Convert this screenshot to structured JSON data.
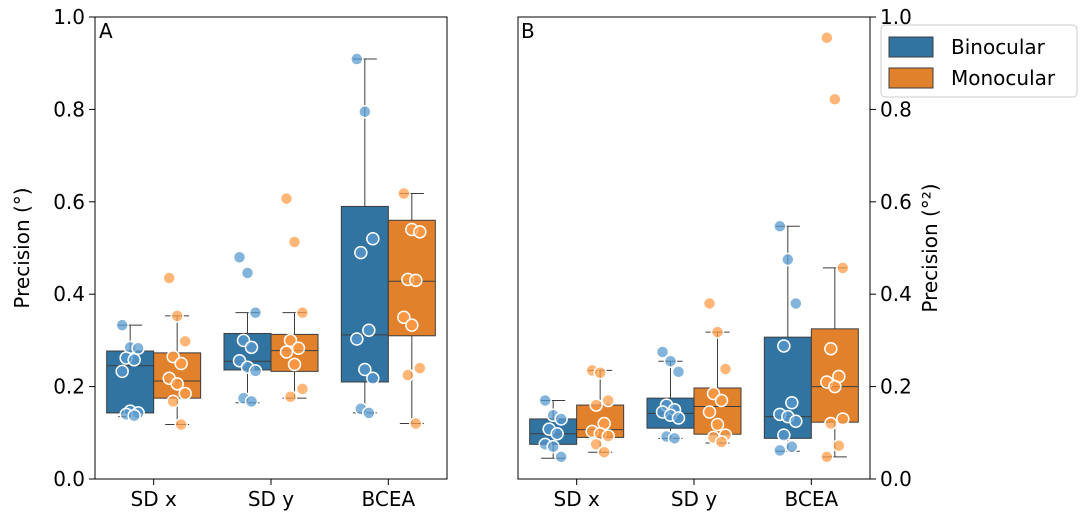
{
  "chart_data": [
    {
      "type": "box",
      "panel_label": "A",
      "ylabel": "Precision (°)",
      "ylim": [
        0,
        1.0
      ],
      "yticks": [
        "0.0",
        "0.2",
        "0.4",
        "0.6",
        "0.8",
        "1.0"
      ],
      "categories": [
        "SD x",
        "SD y",
        "BCEA"
      ],
      "series": [
        {
          "name": "Binocular",
          "boxes": [
            {
              "whisker_low": 0.135,
              "q1": 0.143,
              "median": 0.245,
              "q3": 0.277,
              "whisker_high": 0.333
            },
            {
              "whisker_low": 0.165,
              "q1": 0.236,
              "median": 0.255,
              "q3": 0.315,
              "whisker_high": 0.36
            },
            {
              "whisker_low": 0.143,
              "q1": 0.21,
              "median": 0.312,
              "q3": 0.59,
              "whisker_high": 0.909
            }
          ],
          "points": [
            [
              0.333,
              0.285,
              0.283,
              0.262,
              0.258,
              0.233,
              0.147,
              0.143,
              0.14,
              0.137
            ],
            [
              0.48,
              0.446,
              0.36,
              0.3,
              0.285,
              0.256,
              0.242,
              0.234,
              0.175,
              0.168
            ],
            [
              0.909,
              0.795,
              0.52,
              0.49,
              0.322,
              0.303,
              0.237,
              0.218,
              0.152,
              0.143
            ]
          ]
        },
        {
          "name": "Monocular",
          "boxes": [
            {
              "whisker_low": 0.118,
              "q1": 0.175,
              "median": 0.212,
              "q3": 0.273,
              "whisker_high": 0.353
            },
            {
              "whisker_low": 0.175,
              "q1": 0.233,
              "median": 0.278,
              "q3": 0.313,
              "whisker_high": 0.36
            },
            {
              "whisker_low": 0.12,
              "q1": 0.31,
              "median": 0.428,
              "q3": 0.56,
              "whisker_high": 0.618
            }
          ],
          "points": [
            [
              0.435,
              0.353,
              0.298,
              0.265,
              0.25,
              0.218,
              0.206,
              0.185,
              0.168,
              0.118
            ],
            [
              0.607,
              0.513,
              0.36,
              0.3,
              0.283,
              0.275,
              0.248,
              0.195,
              0.178
            ],
            [
              0.618,
              0.54,
              0.535,
              0.432,
              0.43,
              0.35,
              0.333,
              0.24,
              0.225,
              0.12
            ]
          ]
        }
      ]
    },
    {
      "type": "box",
      "panel_label": "B",
      "ylabel": "Precision (°²)",
      "ylim": [
        0,
        1.0
      ],
      "yticks": [
        "0.0",
        "0.2",
        "0.4",
        "0.6",
        "0.8",
        "1.0"
      ],
      "categories": [
        "SD x",
        "SD y",
        "BCEA"
      ],
      "series": [
        {
          "name": "Binocular",
          "boxes": [
            {
              "whisker_low": 0.045,
              "q1": 0.075,
              "median": 0.098,
              "q3": 0.13,
              "whisker_high": 0.17
            },
            {
              "whisker_low": 0.088,
              "q1": 0.11,
              "median": 0.142,
              "q3": 0.175,
              "whisker_high": 0.255
            },
            {
              "whisker_low": 0.06,
              "q1": 0.088,
              "median": 0.135,
              "q3": 0.307,
              "whisker_high": 0.547
            }
          ],
          "points": [
            [
              0.17,
              0.138,
              0.13,
              0.108,
              0.098,
              0.075,
              0.07,
              0.048
            ],
            [
              0.275,
              0.255,
              0.232,
              0.16,
              0.15,
              0.145,
              0.138,
              0.132,
              0.092,
              0.088
            ],
            [
              0.547,
              0.475,
              0.38,
              0.288,
              0.165,
              0.14,
              0.135,
              0.125,
              0.095,
              0.07,
              0.062
            ]
          ]
        },
        {
          "name": "Monocular",
          "boxes": [
            {
              "whisker_low": 0.058,
              "q1": 0.09,
              "median": 0.107,
              "q3": 0.16,
              "whisker_high": 0.235
            },
            {
              "whisker_low": 0.078,
              "q1": 0.097,
              "median": 0.157,
              "q3": 0.197,
              "whisker_high": 0.318
            },
            {
              "whisker_low": 0.048,
              "q1": 0.123,
              "median": 0.2,
              "q3": 0.325,
              "whisker_high": 0.457
            }
          ],
          "points": [
            [
              0.235,
              0.23,
              0.17,
              0.16,
              0.12,
              0.103,
              0.098,
              0.093,
              0.075,
              0.058
            ],
            [
              0.38,
              0.318,
              0.238,
              0.185,
              0.17,
              0.145,
              0.118,
              0.095,
              0.09,
              0.08
            ],
            [
              0.955,
              0.822,
              0.457,
              0.282,
              0.222,
              0.21,
              0.2,
              0.13,
              0.12,
              0.072,
              0.048
            ]
          ]
        }
      ]
    }
  ],
  "legend": {
    "position": "upper-right",
    "items": [
      {
        "label": "Binocular",
        "color": "#3274a1"
      },
      {
        "label": "Monocular",
        "color": "#e1812c"
      }
    ]
  },
  "colors": {
    "binocular_box": "#3274a1",
    "monocular_box": "#e1812c",
    "binocular_point": "#5a9bd0",
    "monocular_point": "#ff9e4a"
  }
}
